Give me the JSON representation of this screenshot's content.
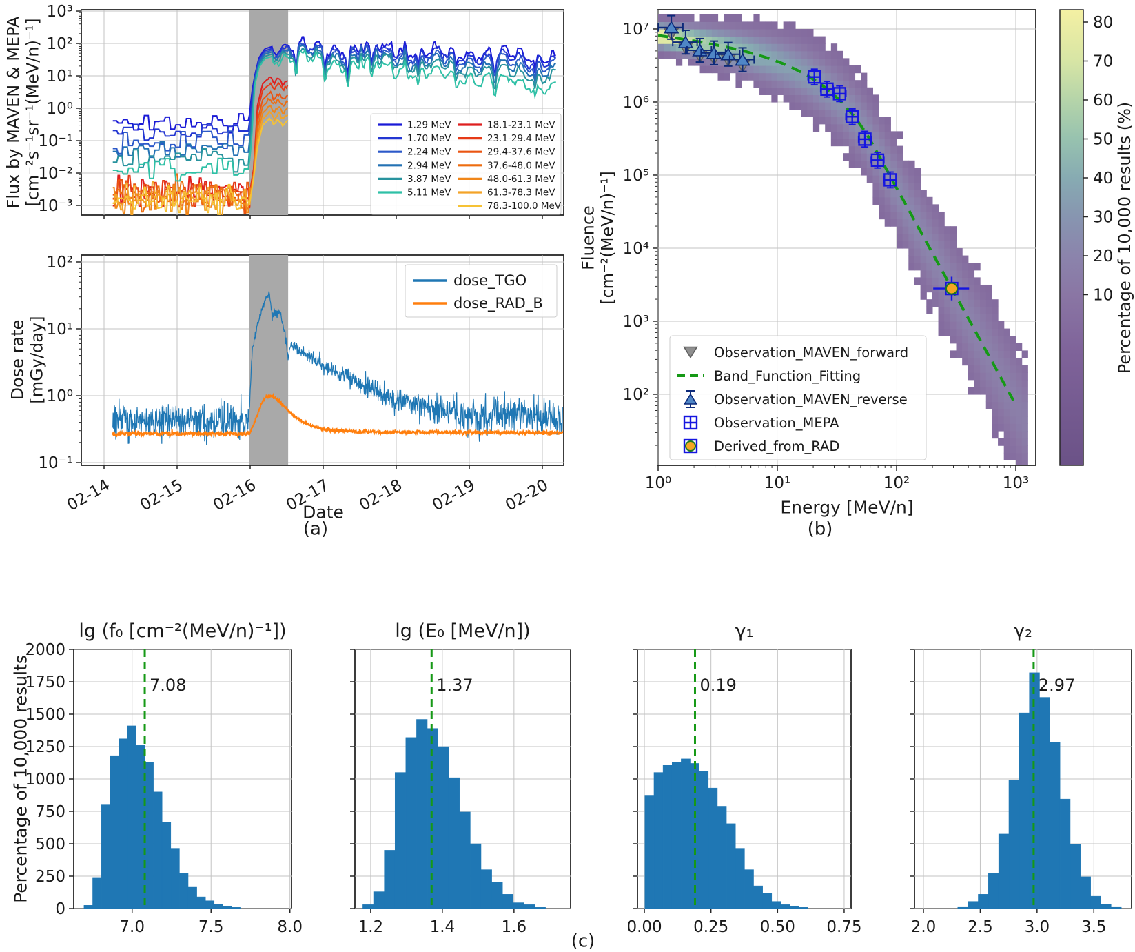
{
  "panels": {
    "a": "(a)",
    "b": "(b)",
    "c": "(c)"
  },
  "chart_data": [
    {
      "id": "flux",
      "type": "line",
      "ylabel_line1": "Flux by MAVEN & MEPA",
      "ylabel_line2": "[cm⁻²s⁻¹sr⁻¹(MeV/n)⁻¹]",
      "xlabel": "Date",
      "x_tick_labels": [
        "02-14",
        "02-15",
        "02-16",
        "02-17",
        "02-18",
        "02-19",
        "02-20"
      ],
      "y_tick_labels": [
        "10³",
        "10²",
        "10¹",
        "10⁰",
        "10⁻¹",
        "10⁻²",
        "10⁻³"
      ],
      "y_tick_lg": [
        3,
        2,
        1,
        0,
        -1,
        -2,
        -3
      ],
      "xlim_days": [
        -0.31,
        6.29
      ],
      "ylim_lg": [
        -3.3,
        3.04
      ],
      "event_shading_days": [
        1.99,
        2.52
      ],
      "maven_series": [
        {
          "label": "1.29 MeV",
          "color": "#1a1ad6",
          "pre_flux": 0.35,
          "peak_flux": 80,
          "end_flux": 42
        },
        {
          "label": "1.70 MeV",
          "color": "#2336d2",
          "pre_flux": 0.22,
          "peak_flux": 70,
          "end_flux": 30
        },
        {
          "label": "2.24 MeV",
          "color": "#2c59c9",
          "pre_flux": 0.105,
          "peak_flux": 62,
          "end_flux": 22
        },
        {
          "label": "2.94 MeV",
          "color": "#2472b4",
          "pre_flux": 0.055,
          "peak_flux": 55,
          "end_flux": 15
        },
        {
          "label": "3.87 MeV",
          "color": "#28939e",
          "pre_flux": 0.03,
          "peak_flux": 47,
          "end_flux": 10
        },
        {
          "label": "5.11 MeV",
          "color": "#2fc0a6",
          "pre_flux": 0.013,
          "peak_flux": 40,
          "end_flux": 4.5
        }
      ],
      "mepa_series": [
        {
          "label": "18.1-23.1 MeV",
          "color": "#de1f1f",
          "pre_flux": 0.003,
          "peak_flux": 8
        },
        {
          "label": "23.1-29.4 MeV",
          "color": "#e63a17",
          "pre_flux": 0.0026,
          "peak_flux": 5
        },
        {
          "label": "29.4-37.6 MeV",
          "color": "#ea5512",
          "pre_flux": 0.0023,
          "peak_flux": 2.6
        },
        {
          "label": "37.6-48.0 MeV",
          "color": "#ed6d10",
          "pre_flux": 0.002,
          "peak_flux": 1.6
        },
        {
          "label": "48.0-61.3 MeV",
          "color": "#f08619",
          "pre_flux": 0.0018,
          "peak_flux": 1.0
        },
        {
          "label": "61.3-78.3 MeV",
          "color": "#f3a328",
          "pre_flux": 0.0016,
          "peak_flux": 0.65
        },
        {
          "label": "78.3-100.0 MeV",
          "color": "#f6c235",
          "pre_flux": 0.0015,
          "peak_flux": 0.42
        }
      ]
    },
    {
      "id": "dose",
      "type": "line",
      "ylabel_line1": "Dose rate",
      "ylabel_line2": "[mGy/day]",
      "y_tick_labels": [
        "10²",
        "10¹",
        "10⁰",
        "10⁻¹"
      ],
      "y_tick_lg": [
        2,
        1,
        0,
        -1
      ],
      "ylim_lg": [
        -1.04,
        2.1
      ],
      "series": [
        {
          "label": "dose_TGO",
          "color": "#1f77b4",
          "anchors": [
            [
              -0.31,
              0.42
            ],
            [
              1.98,
              0.42
            ],
            [
              2.03,
              5
            ],
            [
              2.1,
              11
            ],
            [
              2.16,
              20
            ],
            [
              2.22,
              30
            ],
            [
              2.26,
              33
            ],
            [
              2.3,
              16
            ],
            [
              2.34,
              17
            ],
            [
              2.4,
              19
            ],
            [
              2.47,
              9
            ],
            [
              2.52,
              3.6
            ],
            [
              2.56,
              6
            ],
            [
              2.62,
              5.2
            ],
            [
              2.75,
              4.2
            ],
            [
              3.0,
              2.9
            ],
            [
              3.3,
              1.95
            ],
            [
              3.6,
              1.35
            ],
            [
              3.9,
              1.0
            ],
            [
              4.2,
              0.78
            ],
            [
              4.5,
              0.65
            ],
            [
              4.8,
              0.55
            ],
            [
              5.05,
              0.5
            ],
            [
              5.15,
              0.42
            ],
            [
              5.3,
              0.55
            ],
            [
              6.29,
              0.45
            ]
          ]
        },
        {
          "label": "dose_RAD_B",
          "color": "#ff7f0e",
          "anchors": [
            [
              -0.31,
              0.27
            ],
            [
              1.99,
              0.27
            ],
            [
              2.06,
              0.4
            ],
            [
              2.15,
              0.75
            ],
            [
              2.22,
              0.95
            ],
            [
              2.3,
              1.0
            ],
            [
              2.36,
              0.9
            ],
            [
              2.45,
              0.72
            ],
            [
              2.52,
              0.6
            ],
            [
              2.6,
              0.5
            ],
            [
              2.7,
              0.42
            ],
            [
              2.85,
              0.35
            ],
            [
              3.0,
              0.315
            ],
            [
              3.2,
              0.3
            ],
            [
              3.5,
              0.29
            ],
            [
              4.0,
              0.285
            ],
            [
              6.29,
              0.28
            ]
          ]
        }
      ]
    },
    {
      "id": "spectrum",
      "type": "scatter",
      "xlabel": "Energy [MeV/n]",
      "ylabel_line1": "Fluence",
      "ylabel_line2": "[cm⁻²(MeV/n)⁻¹]",
      "x_tick_labels": [
        "10⁰",
        "10¹",
        "10²",
        "10³"
      ],
      "x_tick_lg": [
        0,
        1,
        2,
        3
      ],
      "y_tick_labels": [
        "10²",
        "10³",
        "10⁴",
        "10⁵",
        "10⁶",
        "10⁷"
      ],
      "y_tick_lg": [
        2,
        3,
        4,
        5,
        6,
        7
      ],
      "xlim_lg": [
        0,
        3.17
      ],
      "ylim_lg": [
        1.03,
        7.26
      ],
      "band_fit": {
        "label": "Band_Function_Fitting",
        "color": "#169916",
        "lg_f0": 7.08,
        "lg_E0": 1.37,
        "gamma1": 0.19,
        "gamma2": 2.97,
        "plot_norm_lg": 6.93
      },
      "maven_forward": {
        "label": "Observation_MAVEN_forward",
        "color": "#8f8f8f",
        "edge": "#5f5f5f",
        "energies_mev": [
          1.29,
          1.7,
          2.24,
          2.94,
          3.87,
          5.11
        ],
        "fluence": [
          8500000,
          5400000,
          4200000,
          3900000,
          3700000,
          3100000
        ]
      },
      "maven_reverse": {
        "label": "Observation_MAVEN_reverse",
        "face": "#4f86c6",
        "edge": "#0d2a7a",
        "energies_mev": [
          1.29,
          1.7,
          2.24,
          2.94,
          3.87,
          5.11
        ],
        "fluence": [
          10500000,
          6600000,
          5100000,
          4700000,
          4500000,
          3800000
        ]
      },
      "mepa": {
        "label": "Observation_MEPA",
        "color": "#1515e0",
        "e_lo": [
          18.1,
          23.1,
          29.4,
          37.6,
          48.0,
          61.3,
          78.3
        ],
        "e_hi": [
          23.1,
          29.4,
          37.6,
          48.0,
          61.3,
          78.3,
          100.0
        ],
        "fluence": [
          2200000,
          1500000,
          1300000,
          630000,
          310000,
          160000,
          86000
        ]
      },
      "rad": {
        "label": "Derived_from_RAD",
        "face": "#f5a623",
        "edge_square": "#1515e0",
        "edge_circle": "#1d7a1d",
        "energy_mev": 290,
        "fluence": 2800
      },
      "colorbar": {
        "label": "Percentage of 10,000 results (%)",
        "tick_values": [
          10,
          20,
          30,
          40,
          50,
          60,
          70,
          80
        ],
        "max_value": 85
      }
    },
    {
      "id": "histograms",
      "type": "bar",
      "ylabel": "Percentage of 10,000 results",
      "y_ticks": [
        0,
        250,
        500,
        750,
        1000,
        1250,
        1500,
        1750,
        2000
      ],
      "ylim": [
        0,
        2000
      ],
      "bar_color": "#1f77b4",
      "mean_line_color": "#169916",
      "charts": [
        {
          "title": "lg (f₀ [cm⁻²(MeV/n)⁻¹])",
          "mean": 7.08,
          "mean_label": "7.08",
          "xlim": [
            6.63,
            8.01
          ],
          "x_ticks": [
            7.0,
            7.5,
            8.0
          ],
          "x_tick_labels": [
            "7.0",
            "7.5",
            "8.0"
          ],
          "bin_start": 6.695,
          "bin_width": 0.055,
          "counts": [
            25,
            240,
            800,
            1180,
            1310,
            1410,
            1260,
            1130,
            900,
            665,
            465,
            270,
            170,
            90,
            60,
            35,
            20,
            10
          ]
        },
        {
          "title": "lg (E₀ [MeV/n])",
          "mean": 1.37,
          "mean_label": "1.37",
          "xlim": [
            1.156,
            1.758
          ],
          "x_ticks": [
            1.2,
            1.4,
            1.6
          ],
          "x_tick_labels": [
            "1.2",
            "1.4",
            "1.6"
          ],
          "bin_start": 1.178,
          "bin_width": 0.03,
          "counts": [
            30,
            130,
            450,
            1050,
            1320,
            1460,
            1390,
            1250,
            1010,
            745,
            500,
            300,
            205,
            110,
            45,
            30,
            10
          ]
        },
        {
          "title": "γ₁",
          "mean": 0.19,
          "mean_label": "0.19",
          "xlim": [
            -0.026,
            0.776
          ],
          "x_ticks": [
            0.0,
            0.25,
            0.5,
            0.75
          ],
          "x_tick_labels": [
            "0.00",
            "0.25",
            "0.50",
            "0.75"
          ],
          "bin_start": 0.002,
          "bin_width": 0.034,
          "counts": [
            875,
            1050,
            1105,
            1130,
            1155,
            1120,
            1060,
            930,
            790,
            655,
            465,
            300,
            175,
            120,
            55,
            30,
            20,
            10
          ]
        },
        {
          "title": "γ₂",
          "mean": 2.97,
          "mean_label": "2.97",
          "xlim": [
            1.921,
            3.832
          ],
          "x_ticks": [
            2.0,
            2.5,
            3.0,
            3.5
          ],
          "x_tick_labels": [
            "2.0",
            "2.5",
            "3.0",
            "3.5"
          ],
          "bin_start": 2.302,
          "bin_width": 0.09,
          "counts": [
            15,
            55,
            110,
            270,
            575,
            990,
            1510,
            1820,
            1630,
            1285,
            845,
            495,
            245,
            95,
            35,
            15
          ]
        }
      ]
    }
  ]
}
